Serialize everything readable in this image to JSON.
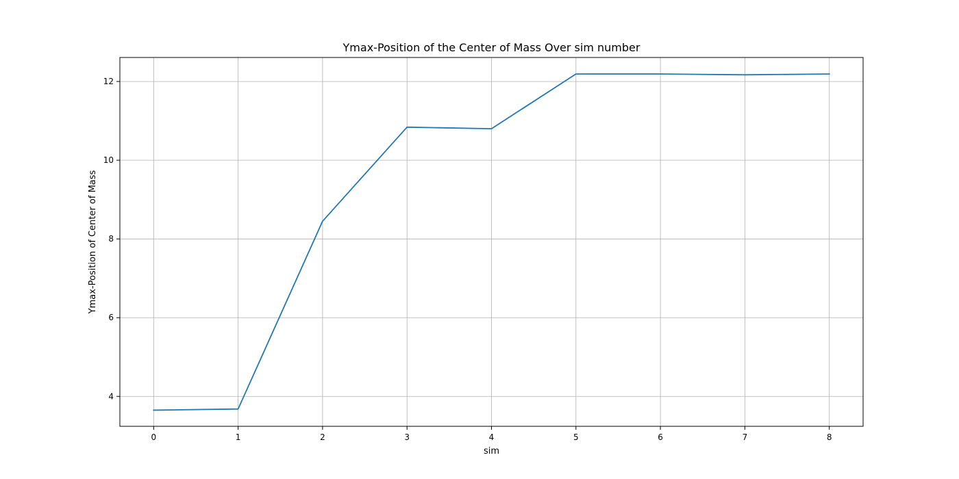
{
  "chart_data": {
    "type": "line",
    "title": "Ymax-Position of the Center of Mass Over sim number",
    "xlabel": "sim",
    "ylabel": "Ymax-Position of Center of Mass",
    "x": [
      0,
      1,
      2,
      3,
      4,
      5,
      6,
      7,
      8
    ],
    "series": [
      {
        "values": [
          3.65,
          3.68,
          8.45,
          10.84,
          10.8,
          12.19,
          12.19,
          12.17,
          12.19
        ],
        "color": "#1f77b4"
      }
    ],
    "xticks": [
      "0",
      "1",
      "2",
      "3",
      "4",
      "5",
      "6",
      "7",
      "8"
    ],
    "yticks": [
      "4",
      "6",
      "8",
      "10",
      "12"
    ],
    "xlim": [
      -0.4,
      8.4
    ],
    "ylim": [
      3.24,
      12.61
    ],
    "grid": true,
    "colors": {
      "grid": "#b0b0b0",
      "axes": "#000000",
      "background": "#ffffff"
    }
  }
}
